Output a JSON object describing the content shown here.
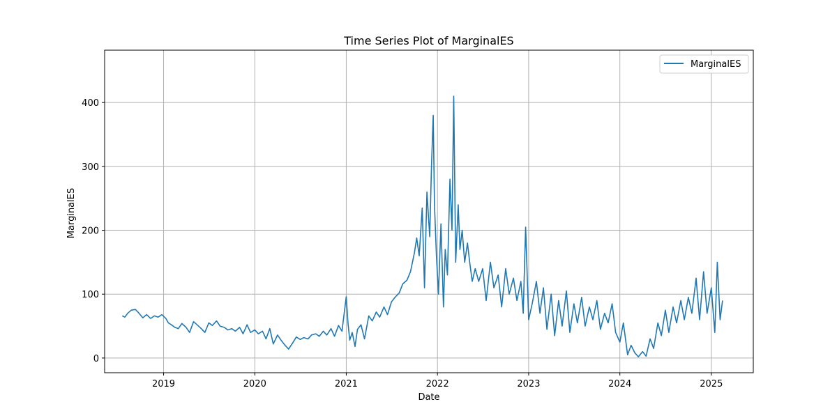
{
  "chart_data": {
    "type": "line",
    "title": "Time Series Plot of MarginalES",
    "xlabel": "Date",
    "ylabel": "MarginalES",
    "x_is_date": true,
    "xlim": [
      "2018-05-10",
      "2025-06-18"
    ],
    "ylim": [
      -23,
      482
    ],
    "xticks": [
      {
        "value": "2019-01-01",
        "label": "2019"
      },
      {
        "value": "2020-01-01",
        "label": "2020"
      },
      {
        "value": "2021-01-01",
        "label": "2021"
      },
      {
        "value": "2022-01-01",
        "label": "2022"
      },
      {
        "value": "2023-01-01",
        "label": "2023"
      },
      {
        "value": "2024-01-01",
        "label": "2024"
      },
      {
        "value": "2025-01-01",
        "label": "2025"
      }
    ],
    "yticks": [
      0,
      100,
      200,
      300,
      400
    ],
    "grid": true,
    "legend_position": "top-right",
    "series": [
      {
        "name": "MarginalES",
        "color": "#1f77b4",
        "x": [
          "2018-07-20",
          "2018-07-30",
          "2018-08-10",
          "2018-08-25",
          "2018-09-10",
          "2018-09-25",
          "2018-10-10",
          "2018-10-25",
          "2018-11-10",
          "2018-11-25",
          "2018-12-10",
          "2018-12-25",
          "2019-01-10",
          "2019-01-20",
          "2019-02-01",
          "2019-02-15",
          "2019-03-01",
          "2019-03-15",
          "2019-04-01",
          "2019-04-15",
          "2019-05-01",
          "2019-05-15",
          "2019-06-01",
          "2019-06-15",
          "2019-07-01",
          "2019-07-15",
          "2019-08-01",
          "2019-08-15",
          "2019-09-01",
          "2019-09-15",
          "2019-10-01",
          "2019-10-15",
          "2019-11-01",
          "2019-11-15",
          "2019-12-01",
          "2019-12-15",
          "2020-01-01",
          "2020-01-15",
          "2020-02-01",
          "2020-02-15",
          "2020-03-01",
          "2020-03-15",
          "2020-04-01",
          "2020-04-15",
          "2020-05-01",
          "2020-05-15",
          "2020-06-01",
          "2020-06-15",
          "2020-07-01",
          "2020-07-15",
          "2020-08-01",
          "2020-08-15",
          "2020-09-01",
          "2020-09-15",
          "2020-10-01",
          "2020-10-15",
          "2020-11-01",
          "2020-11-15",
          "2020-12-01",
          "2020-12-15",
          "2021-01-01",
          "2021-01-08",
          "2021-01-15",
          "2021-01-25",
          "2021-02-05",
          "2021-02-15",
          "2021-03-01",
          "2021-03-15",
          "2021-04-01",
          "2021-04-15",
          "2021-05-01",
          "2021-05-15",
          "2021-06-01",
          "2021-06-15",
          "2021-07-01",
          "2021-07-15",
          "2021-08-01",
          "2021-08-15",
          "2021-09-01",
          "2021-09-15",
          "2021-10-01",
          "2021-10-10",
          "2021-10-20",
          "2021-11-01",
          "2021-11-10",
          "2021-11-20",
          "2021-12-01",
          "2021-12-08",
          "2021-12-15",
          "2021-12-20",
          "2021-12-28",
          "2022-01-05",
          "2022-01-15",
          "2022-01-25",
          "2022-02-01",
          "2022-02-10",
          "2022-02-20",
          "2022-02-28",
          "2022-03-07",
          "2022-03-15",
          "2022-03-25",
          "2022-04-01",
          "2022-04-10",
          "2022-04-20",
          "2022-05-01",
          "2022-05-10",
          "2022-05-20",
          "2022-06-01",
          "2022-06-15",
          "2022-07-01",
          "2022-07-15",
          "2022-08-01",
          "2022-08-15",
          "2022-09-01",
          "2022-09-15",
          "2022-10-01",
          "2022-10-15",
          "2022-11-01",
          "2022-11-15",
          "2022-12-01",
          "2022-12-10",
          "2022-12-20",
          "2023-01-01",
          "2023-01-15",
          "2023-02-01",
          "2023-02-15",
          "2023-03-01",
          "2023-03-15",
          "2023-04-01",
          "2023-04-15",
          "2023-05-01",
          "2023-05-15",
          "2023-06-01",
          "2023-06-15",
          "2023-07-01",
          "2023-07-15",
          "2023-08-01",
          "2023-08-15",
          "2023-09-01",
          "2023-09-15",
          "2023-10-01",
          "2023-10-15",
          "2023-11-01",
          "2023-11-15",
          "2023-12-01",
          "2023-12-15",
          "2024-01-01",
          "2024-01-15",
          "2024-02-01",
          "2024-02-15",
          "2024-03-01",
          "2024-03-15",
          "2024-04-01",
          "2024-04-15",
          "2024-05-01",
          "2024-05-15",
          "2024-06-01",
          "2024-06-15",
          "2024-07-01",
          "2024-07-15",
          "2024-08-01",
          "2024-08-15",
          "2024-09-01",
          "2024-09-15",
          "2024-10-01",
          "2024-10-15",
          "2024-11-01",
          "2024-11-15",
          "2024-12-01",
          "2024-12-15",
          "2025-01-01",
          "2025-01-15",
          "2025-01-25",
          "2025-02-05",
          "2025-02-15"
        ],
        "y": [
          66,
          64,
          70,
          75,
          76,
          70,
          63,
          68,
          62,
          66,
          64,
          68,
          62,
          55,
          52,
          48,
          46,
          54,
          48,
          40,
          57,
          52,
          46,
          40,
          55,
          51,
          58,
          50,
          48,
          44,
          46,
          42,
          48,
          38,
          52,
          40,
          44,
          38,
          42,
          30,
          46,
          22,
          36,
          28,
          20,
          14,
          24,
          33,
          29,
          32,
          30,
          36,
          38,
          34,
          42,
          36,
          46,
          34,
          51,
          42,
          96,
          55,
          28,
          40,
          18,
          45,
          52,
          30,
          66,
          58,
          72,
          64,
          80,
          68,
          88,
          95,
          102,
          116,
          122,
          135,
          165,
          188,
          160,
          235,
          110,
          260,
          190,
          300,
          380,
          240,
          160,
          100,
          210,
          80,
          170,
          130,
          280,
          200,
          410,
          150,
          240,
          170,
          200,
          150,
          180,
          150,
          120,
          140,
          120,
          140,
          90,
          150,
          110,
          130,
          80,
          140,
          100,
          125,
          90,
          120,
          70,
          205,
          60,
          85,
          120,
          70,
          110,
          45,
          100,
          35,
          90,
          50,
          105,
          40,
          85,
          55,
          95,
          50,
          80,
          60,
          90,
          45,
          70,
          55,
          85,
          40,
          25,
          55,
          5,
          20,
          8,
          2,
          10,
          3,
          30,
          15,
          55,
          35,
          75,
          40,
          80,
          55,
          90,
          60,
          95,
          70,
          125,
          60,
          135,
          70,
          110,
          40,
          150,
          60,
          90
        ]
      }
    ]
  }
}
